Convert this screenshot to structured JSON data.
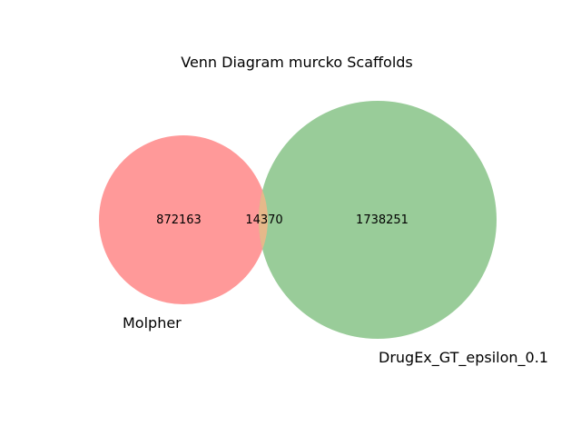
{
  "chart_data": {
    "type": "venn",
    "title": "Venn Diagram murcko Scaffolds",
    "sets": [
      {
        "name": "Molpher",
        "only_count": "872163",
        "color": "#ff9999"
      },
      {
        "name": "DrugEx_GT_epsilon_0.1",
        "only_count": "1738251",
        "color": "#99cc99"
      }
    ],
    "intersection_count": "14370",
    "intersection_color": "#e6b88a"
  }
}
